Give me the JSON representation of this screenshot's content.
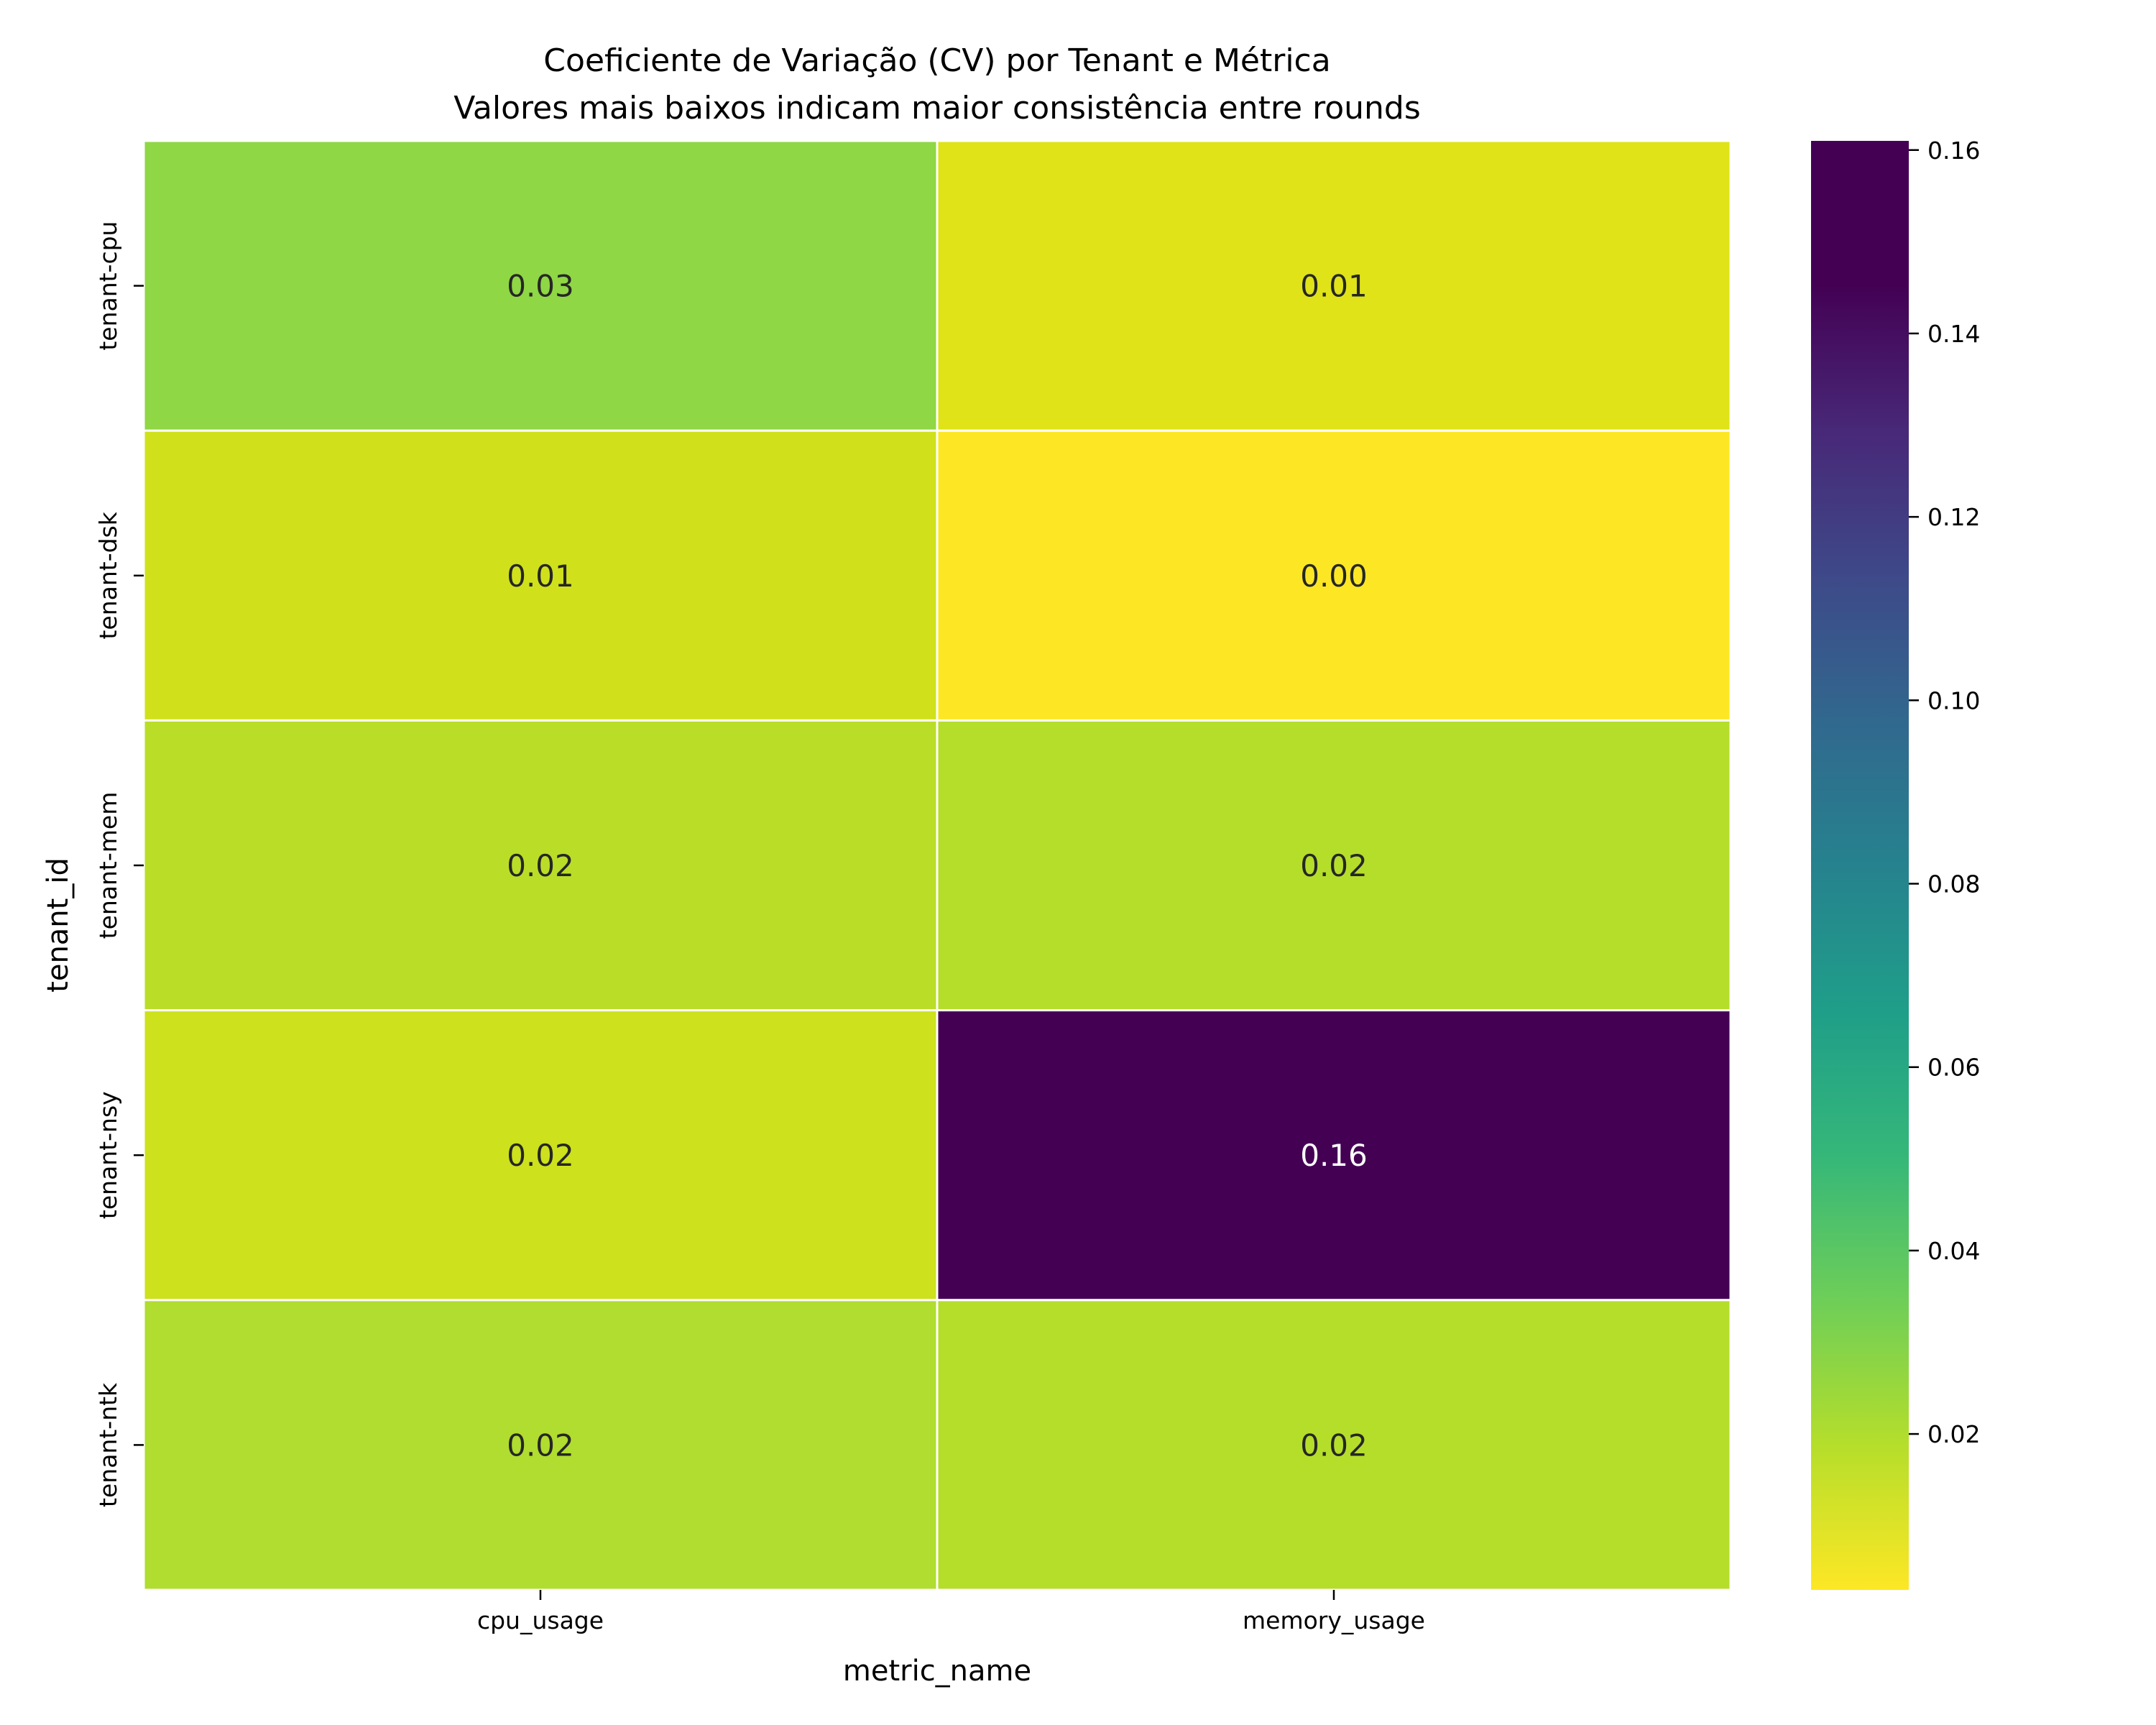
{
  "chart_data": {
    "type": "heatmap",
    "title": "Coeficiente de Variação (CV) por Tenant e Métrica",
    "subtitle": "Valores mais baixos indicam maior consistência entre rounds",
    "xlabel": "metric_name",
    "ylabel": "tenant_id",
    "x_categories": [
      "cpu_usage",
      "memory_usage"
    ],
    "y_categories": [
      "tenant-cpu",
      "tenant-dsk",
      "tenant-mem",
      "tenant-nsy",
      "tenant-ntk"
    ],
    "values": [
      [
        0.03,
        0.01
      ],
      [
        0.01,
        0.0
      ],
      [
        0.02,
        0.02
      ],
      [
        0.02,
        0.16
      ],
      [
        0.02,
        0.02
      ]
    ],
    "cells": [
      {
        "label": "0.03",
        "color": "#8fd744"
      },
      {
        "label": "0.01",
        "color": "#dfe318"
      },
      {
        "label": "0.01",
        "color": "#d0e11c"
      },
      {
        "label": "0.00",
        "color": "#fde725"
      },
      {
        "label": "0.02",
        "color": "#bade28"
      },
      {
        "label": "0.02",
        "color": "#b5de2b"
      },
      {
        "label": "0.02",
        "color": "#cde11d"
      },
      {
        "label": "0.16",
        "color": "#440154"
      },
      {
        "label": "0.02",
        "color": "#b0dd2f"
      },
      {
        "label": "0.02",
        "color": "#b5de2b"
      }
    ],
    "colormap": "viridis_r",
    "colorbar": {
      "range": [
        0.003,
        0.161
      ],
      "ticks": [
        0.02,
        0.04,
        0.06,
        0.08,
        0.1,
        0.12,
        0.14,
        0.16
      ],
      "tick_labels": [
        "0.02",
        "0.04",
        "0.06",
        "0.08",
        "0.10",
        "0.12",
        "0.14",
        "0.16"
      ]
    },
    "grid": false,
    "gridline_color": "#ffffff"
  }
}
